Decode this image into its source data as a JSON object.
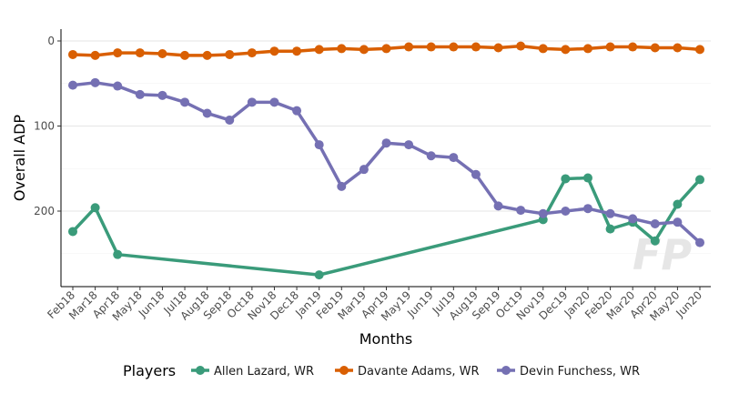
{
  "chart_data": {
    "type": "line",
    "xlabel": "Months",
    "ylabel": "Overall ADP",
    "y_reversed": true,
    "ylim": [
      0,
      290
    ],
    "yticks": [
      0,
      100,
      200
    ],
    "grid": "horizontal major",
    "legend_title": "Players",
    "legend_position": "bottom",
    "categories": [
      "Feb18",
      "Mar18",
      "Apr18",
      "May18",
      "Jun18",
      "Jul18",
      "Aug18",
      "Sep18",
      "Oct18",
      "Nov18",
      "Dec18",
      "Jan19",
      "Feb19",
      "Mar19",
      "Apr19",
      "May19",
      "Jun19",
      "Jul19",
      "Aug19",
      "Sep19",
      "Oct19",
      "Nov19",
      "Dec19",
      "Jan20",
      "Feb20",
      "Mar20",
      "Apr20",
      "May20",
      "Jun20"
    ],
    "series": [
      {
        "name": "Allen Lazard, WR",
        "color": "#3a9b7a",
        "points": [
          [
            "Feb18",
            224
          ],
          [
            "Mar18",
            196
          ],
          [
            "Apr18",
            251
          ],
          [
            "Jan19",
            275
          ],
          [
            "Nov19",
            210
          ],
          [
            "Dec19",
            162
          ],
          [
            "Jan20",
            161
          ],
          [
            "Feb20",
            221
          ],
          [
            "Mar20",
            213
          ],
          [
            "Apr20",
            235
          ],
          [
            "May20",
            192
          ],
          [
            "Jun20",
            163
          ]
        ]
      },
      {
        "name": "Davante Adams, WR",
        "color": "#d95f02",
        "points": [
          [
            "Feb18",
            16
          ],
          [
            "Mar18",
            17
          ],
          [
            "Apr18",
            14
          ],
          [
            "May18",
            14
          ],
          [
            "Jun18",
            15
          ],
          [
            "Jul18",
            17
          ],
          [
            "Aug18",
            17
          ],
          [
            "Sep18",
            16
          ],
          [
            "Oct18",
            14
          ],
          [
            "Nov18",
            12
          ],
          [
            "Dec18",
            12
          ],
          [
            "Jan19",
            10
          ],
          [
            "Feb19",
            9
          ],
          [
            "Mar19",
            10
          ],
          [
            "Apr19",
            9
          ],
          [
            "May19",
            7
          ],
          [
            "Jun19",
            7
          ],
          [
            "Jul19",
            7
          ],
          [
            "Aug19",
            7
          ],
          [
            "Sep19",
            8
          ],
          [
            "Oct19",
            6
          ],
          [
            "Nov19",
            9
          ],
          [
            "Dec19",
            10
          ],
          [
            "Jan20",
            9
          ],
          [
            "Feb20",
            7
          ],
          [
            "Mar20",
            7
          ],
          [
            "Apr20",
            8
          ],
          [
            "May20",
            8
          ],
          [
            "Jun20",
            10
          ]
        ]
      },
      {
        "name": "Devin Funchess, WR",
        "color": "#7570b3",
        "points": [
          [
            "Feb18",
            52
          ],
          [
            "Mar18",
            49
          ],
          [
            "Apr18",
            53
          ],
          [
            "May18",
            63
          ],
          [
            "Jun18",
            64
          ],
          [
            "Jul18",
            72
          ],
          [
            "Aug18",
            85
          ],
          [
            "Sep18",
            93
          ],
          [
            "Oct18",
            72
          ],
          [
            "Nov18",
            72
          ],
          [
            "Dec18",
            82
          ],
          [
            "Jan19",
            122
          ],
          [
            "Feb19",
            171
          ],
          [
            "Mar19",
            151
          ],
          [
            "Apr19",
            120
          ],
          [
            "May19",
            122
          ],
          [
            "Jun19",
            135
          ],
          [
            "Jul19",
            137
          ],
          [
            "Aug19",
            157
          ],
          [
            "Sep19",
            194
          ],
          [
            "Oct19",
            199
          ],
          [
            "Nov19",
            203
          ],
          [
            "Dec19",
            200
          ],
          [
            "Jan20",
            197
          ],
          [
            "Feb20",
            203
          ],
          [
            "Mar20",
            209
          ],
          [
            "Apr20",
            215
          ],
          [
            "May20",
            213
          ],
          [
            "Jun20",
            237
          ]
        ]
      }
    ]
  },
  "watermark_text": "FP"
}
